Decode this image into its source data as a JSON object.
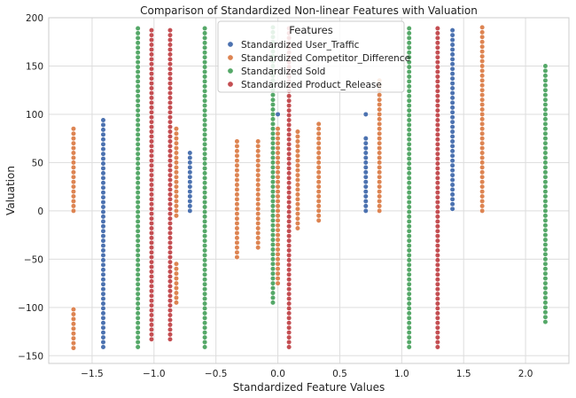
{
  "chart_data": {
    "type": "scatter",
    "title": "Comparison of Standardized Non-linear Features with Valuation",
    "xlabel": "Standardized Feature Values",
    "ylabel": "Valuation",
    "xlim": [
      -1.85,
      2.35
    ],
    "ylim": [
      -158,
      200
    ],
    "x_ticks": [
      -1.5,
      -1.0,
      -0.5,
      0.0,
      0.5,
      1.0,
      1.5,
      2.0
    ],
    "x_tick_labels": [
      "−1.5",
      "−1.0",
      "−0.5",
      "0.0",
      "0.5",
      "1.0",
      "1.5",
      "2.0"
    ],
    "y_ticks": [
      -150,
      -100,
      -50,
      0,
      50,
      100,
      150,
      200
    ],
    "y_tick_labels": [
      "−150",
      "−100",
      "−50",
      "0",
      "50",
      "100",
      "150",
      "200"
    ],
    "grid": true,
    "legend": {
      "title": "Features",
      "position": "top-center"
    },
    "series": [
      {
        "name": "Standardized User_Traffic",
        "color": "#4c72b0",
        "columns": [
          {
            "x": -1.41,
            "ranges": [
              [
                -141,
                94
              ]
            ]
          },
          {
            "x": -0.71,
            "ranges": [
              [
                0,
                60
              ]
            ]
          },
          {
            "x": 0.0,
            "ranges": [
              [
                100,
                100
              ]
            ]
          },
          {
            "x": 0.71,
            "ranges": [
              [
                0,
                75
              ],
              [
                100,
                100
              ]
            ]
          },
          {
            "x": 1.41,
            "ranges": [
              [
                2,
                190
              ]
            ]
          }
        ]
      },
      {
        "name": "Standardized Competitor_Difference",
        "color": "#dd8452",
        "columns": [
          {
            "x": -1.65,
            "ranges": [
              [
                0,
                85
              ],
              [
                -142,
                -102
              ]
            ]
          },
          {
            "x": -0.82,
            "ranges": [
              [
                -5,
                85
              ],
              [
                -95,
                -52
              ]
            ]
          },
          {
            "x": -0.33,
            "ranges": [
              [
                -48,
                73
              ]
            ]
          },
          {
            "x": -0.16,
            "ranges": [
              [
                -38,
                73
              ]
            ]
          },
          {
            "x": 0.0,
            "ranges": [
              [
                -75,
                85
              ]
            ]
          },
          {
            "x": 0.16,
            "ranges": [
              [
                -18,
                82
              ]
            ]
          },
          {
            "x": 0.33,
            "ranges": [
              [
                -10,
                93
              ]
            ]
          },
          {
            "x": 0.82,
            "ranges": [
              [
                0,
                137
              ]
            ]
          },
          {
            "x": 1.65,
            "ranges": [
              [
                0,
                190
              ]
            ]
          }
        ]
      },
      {
        "name": "Standardized Sold",
        "color": "#55a868",
        "columns": [
          {
            "x": -1.13,
            "ranges": [
              [
                -141,
                190
              ]
            ]
          },
          {
            "x": -0.59,
            "ranges": [
              [
                -141,
                190
              ]
            ]
          },
          {
            "x": -0.04,
            "ranges": [
              [
                -95,
                190
              ]
            ]
          },
          {
            "x": 1.06,
            "ranges": [
              [
                -141,
                190
              ]
            ]
          },
          {
            "x": 2.16,
            "ranges": [
              [
                -115,
                150
              ]
            ]
          }
        ]
      },
      {
        "name": "Standardized Product_Release",
        "color": "#c44e52",
        "columns": [
          {
            "x": -1.02,
            "ranges": [
              [
                -133,
                190
              ]
            ]
          },
          {
            "x": -0.87,
            "ranges": [
              [
                -133,
                190
              ]
            ]
          },
          {
            "x": 0.09,
            "ranges": [
              [
                -141,
                190
              ]
            ]
          },
          {
            "x": 1.29,
            "ranges": [
              [
                -141,
                190
              ]
            ]
          }
        ]
      }
    ]
  }
}
